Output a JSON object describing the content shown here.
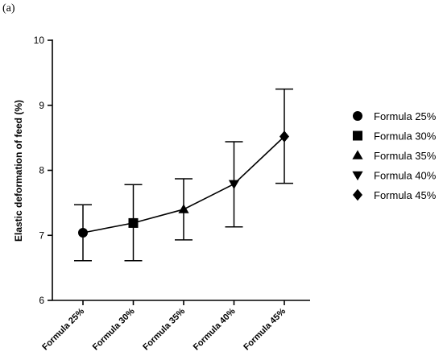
{
  "panel_label": "(a)",
  "chart_data": {
    "type": "line",
    "ylabel": "Elastic deformation of feed (%)",
    "xlabel": "",
    "ylim": [
      6,
      10
    ],
    "yticks": [
      6,
      7,
      8,
      9,
      10
    ],
    "categories": [
      "Formula 25%",
      "Formula 30%",
      "Formula 35%",
      "Formula 40%",
      "Formula 45%"
    ],
    "values": [
      7.04,
      7.19,
      7.4,
      7.79,
      8.52
    ],
    "error_low": [
      6.61,
      6.61,
      6.93,
      7.13,
      7.8
    ],
    "error_high": [
      7.47,
      7.78,
      7.87,
      8.44,
      9.25
    ],
    "markers": [
      "circle",
      "square",
      "triangle-up",
      "triangle-down",
      "diamond"
    ],
    "legend": {
      "position": "right",
      "entries": [
        "Formula 25%",
        "Formula 30%",
        "Formula 35%",
        "Formula 40%",
        "Formula 45%"
      ]
    },
    "grid": false,
    "color": "#000000"
  }
}
